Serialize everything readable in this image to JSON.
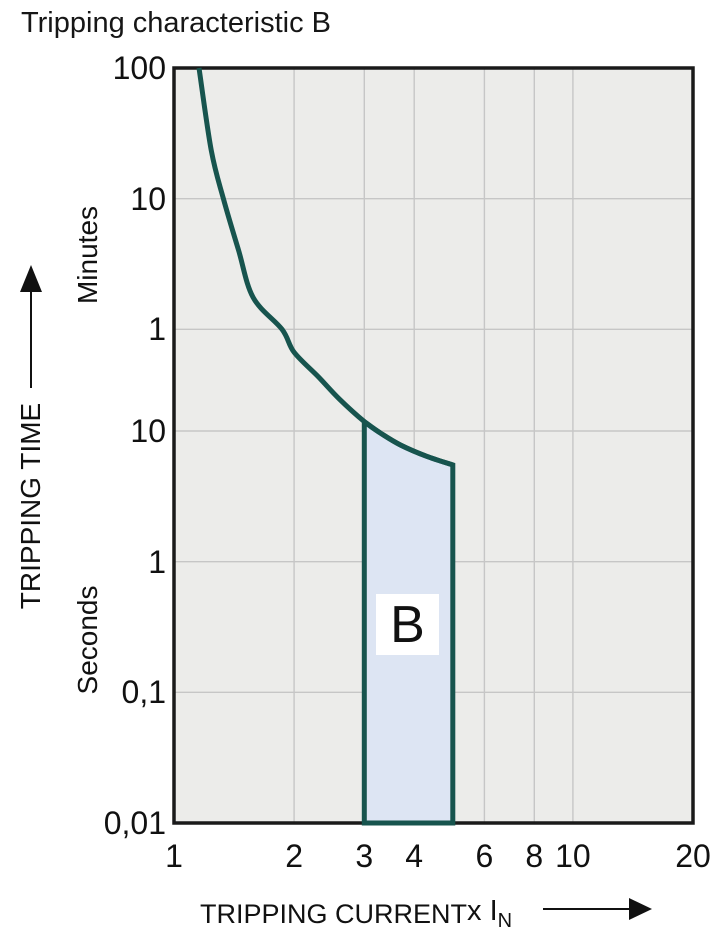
{
  "title": "Tripping characteristic B",
  "y_axis": {
    "title": "TRIPPING TIME",
    "upper_unit": "Minutes",
    "lower_unit": "Seconds"
  },
  "x_axis": {
    "title": "TRIPPING CURRENT",
    "unit_prefix": "x",
    "unit_symbol": "I",
    "unit_subscript": "N"
  },
  "colors": {
    "curve": "#17544e",
    "region_fill": "#dde5f3",
    "plot_background": "#ececea",
    "gridline": "#c6c6c6",
    "axis_border": "#1a1a1a",
    "text": "#111111"
  },
  "chart_data": {
    "type": "line",
    "title": "Tripping characteristic B",
    "x_scale": "log",
    "y_scale": "log",
    "xlabel": "TRIPPING CURRENT (x IN)",
    "ylabel": "TRIPPING TIME",
    "xlim": [
      1,
      20
    ],
    "ylim_seconds": [
      0.01,
      6000
    ],
    "grid": "on",
    "x_ticks": [
      {
        "v": 1,
        "label": "1"
      },
      {
        "v": 2,
        "label": "2"
      },
      {
        "v": 3,
        "label": "3"
      },
      {
        "v": 4,
        "label": "4"
      },
      {
        "v": 6,
        "label": "6"
      },
      {
        "v": 8,
        "label": "8"
      },
      {
        "v": 10,
        "label": "10"
      },
      {
        "v": 20,
        "label": "20"
      }
    ],
    "y_ticks": [
      {
        "seconds": 6000,
        "label": "100",
        "unit": "minutes"
      },
      {
        "seconds": 600,
        "label": "10",
        "unit": "minutes"
      },
      {
        "seconds": 60,
        "label": "1",
        "unit": "minutes"
      },
      {
        "seconds": 10,
        "label": "10",
        "unit": "seconds"
      },
      {
        "seconds": 1,
        "label": "1",
        "unit": "seconds"
      },
      {
        "seconds": 0.1,
        "label": "0,1",
        "unit": "seconds"
      },
      {
        "seconds": 0.01,
        "label": "0,01",
        "unit": "seconds"
      }
    ],
    "x_gridlines": [
      2,
      3,
      4,
      6,
      8,
      10
    ],
    "y_gridlines_seconds": [
      600,
      60,
      10,
      1,
      0.1
    ],
    "series": [
      {
        "name": "B characteristic tripping limit curve",
        "points_x_multiple_vs_seconds": [
          [
            1.155,
            6000
          ],
          [
            1.24,
            1400
          ],
          [
            1.33,
            600
          ],
          [
            1.45,
            244
          ],
          [
            1.58,
            105
          ],
          [
            1.865,
            60
          ],
          [
            2.0,
            40
          ],
          [
            2.3,
            26
          ],
          [
            2.6,
            17.5
          ],
          [
            3.0,
            11.8
          ],
          [
            3.3,
            9.6
          ],
          [
            3.7,
            7.8
          ],
          [
            4.3,
            6.4
          ],
          [
            5.0,
            5.5
          ]
        ]
      }
    ],
    "region": {
      "label": "B",
      "x_range": [
        3,
        5
      ],
      "bottom_seconds": 0.01,
      "top_boundary_points": [
        [
          3.0,
          11.8
        ],
        [
          3.3,
          9.6
        ],
        [
          3.7,
          7.8
        ],
        [
          4.3,
          6.4
        ],
        [
          5.0,
          5.5
        ]
      ]
    }
  }
}
